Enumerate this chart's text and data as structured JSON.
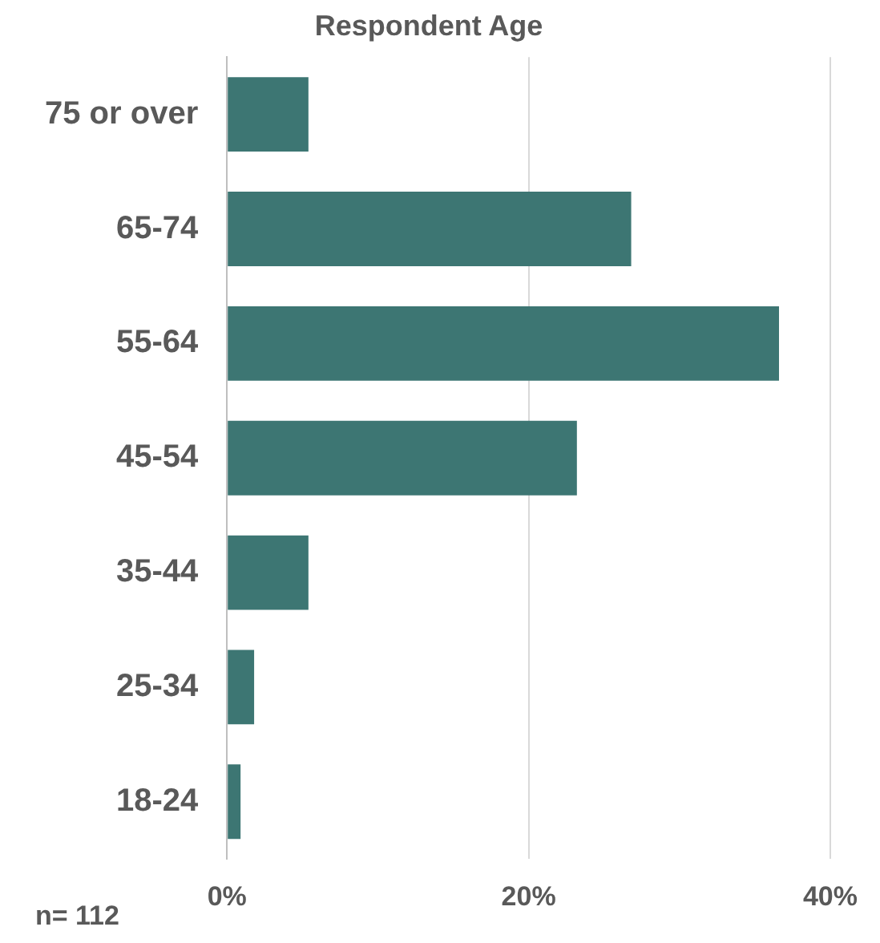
{
  "chart_data": {
    "type": "bar",
    "orientation": "horizontal",
    "title": "Respondent Age",
    "categories": [
      "75 or over",
      "65-74",
      "55-64",
      "45-54",
      "35-44",
      "25-34",
      "18-24"
    ],
    "values": [
      5.4,
      26.8,
      36.6,
      23.2,
      5.4,
      1.8,
      0.9
    ],
    "color": "#3d7673",
    "xlim": [
      0,
      40
    ],
    "xticks": [
      {
        "value": 0,
        "label": "0%"
      },
      {
        "value": 20,
        "label": "20%"
      },
      {
        "value": 40,
        "label": "40%"
      }
    ],
    "grid": "x",
    "legend": false,
    "annotations": [
      "n= 112"
    ]
  }
}
